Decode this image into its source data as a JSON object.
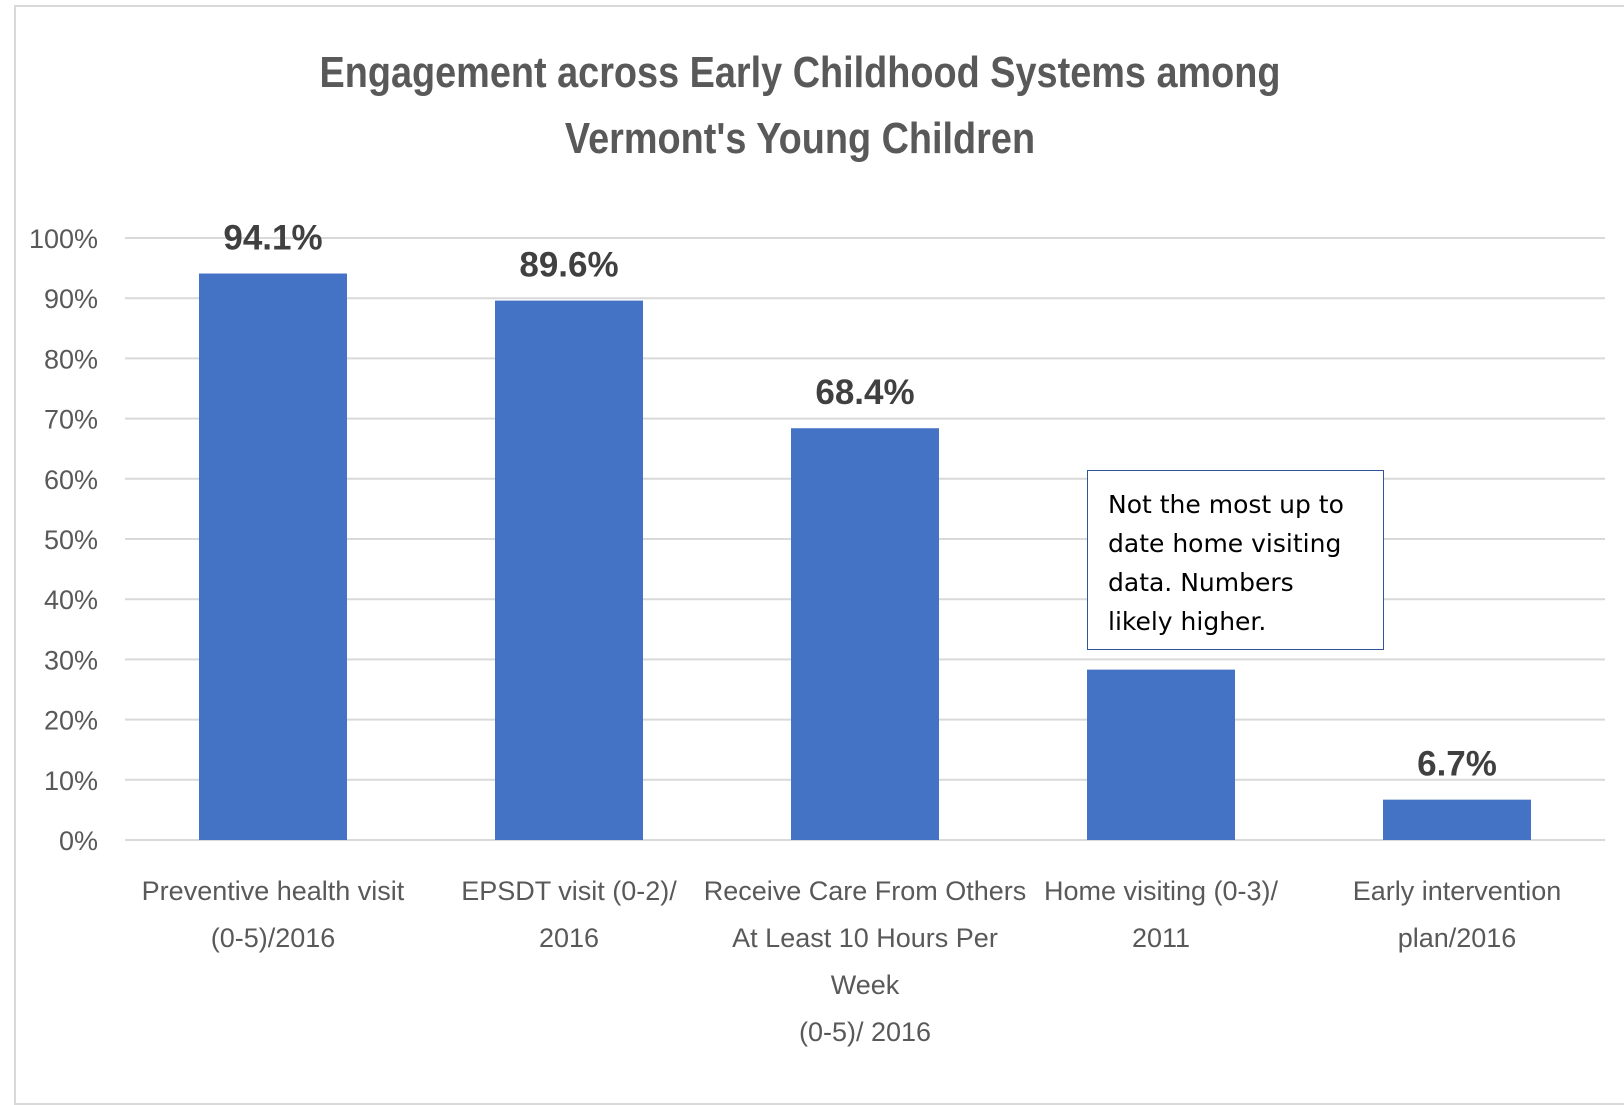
{
  "chart_data": {
    "type": "bar",
    "title": "Engagement across Early Childhood Systems among Vermont's Young Children",
    "categories": [
      [
        "Preventive health visit",
        "(0-5)/2016"
      ],
      [
        "EPSDT visit (0-2)/",
        "2016"
      ],
      [
        "Receive Care From Others",
        "At Least 10 Hours Per",
        "Week",
        "(0-5)/ 2016"
      ],
      [
        "Home visiting (0-3)/",
        "2011"
      ],
      [
        "Early intervention",
        "plan/2016"
      ]
    ],
    "values": [
      94.1,
      89.6,
      68.4,
      28.3,
      6.7
    ],
    "data_labels": [
      "94.1%",
      "89.6%",
      "68.4%",
      "",
      "6.7%"
    ],
    "ylim": [
      0,
      100
    ],
    "yticks": [
      "0%",
      "10%",
      "20%",
      "30%",
      "40%",
      "50%",
      "60%",
      "70%",
      "80%",
      "90%",
      "100%"
    ],
    "bar_color": "#4472c4",
    "grid": true,
    "legend": "none",
    "annotation": "Not the most up to date home visiting data. Numbers likely higher."
  }
}
